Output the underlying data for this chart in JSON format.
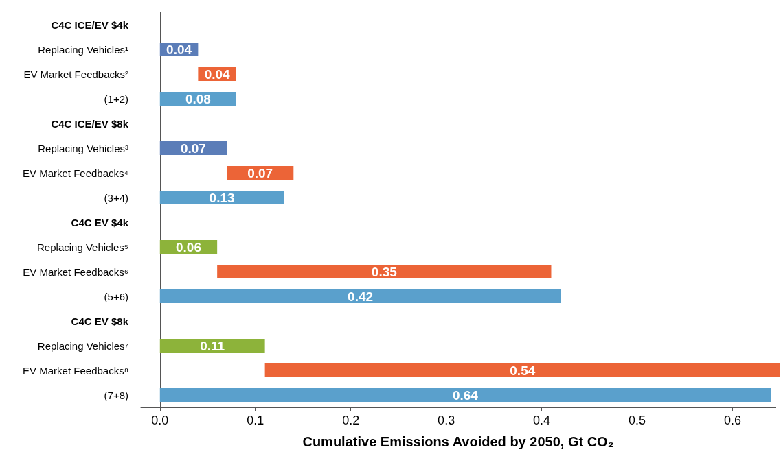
{
  "chart_data": {
    "type": "bar",
    "orientation": "horizontal",
    "xlabel": "Cumulative Emissions Avoided by 2050, Gt CO₂",
    "categories": [
      "C4C ICE/EV $4k",
      "Replacing Vehicles¹",
      "EV Market Feedbacks²",
      "(1+2)",
      "C4C ICE/EV $8k",
      "Replacing Vehicles³",
      "EV Market Feedbacks⁴",
      "(3+4)",
      "C4C EV $4k",
      "Replacing Vehicles⁵",
      "EV Market Feedbacks⁶",
      "(5+6)",
      "C4C EV $8k",
      "Replacing Vehicles⁷",
      "EV Market Feedbacks⁸",
      "(7+8)"
    ],
    "values": [
      null,
      0.04,
      0.04,
      0.08,
      null,
      0.07,
      0.07,
      0.13,
      null,
      0.06,
      0.35,
      0.42,
      null,
      0.11,
      0.54,
      0.64
    ],
    "base": [
      null,
      0,
      0.04,
      0,
      null,
      0,
      0.07,
      0,
      null,
      0,
      0.06,
      0,
      null,
      0,
      0.11,
      0
    ],
    "colors": [
      null,
      "#5b7db8",
      "#ec6437",
      "#5aa0cc",
      null,
      "#5b7db8",
      "#ec6437",
      "#5aa0cc",
      null,
      "#8db33a",
      "#ec6437",
      "#5aa0cc",
      null,
      "#8db33a",
      "#ec6437",
      "#5aa0cc"
    ],
    "data_labels": true,
    "xlim": [
      -0.02,
      0.645
    ],
    "xticks": [
      {
        "value": 0,
        "label": "0.0"
      },
      0.1,
      0.2,
      0.3,
      0.4,
      0.5,
      0.6
    ]
  }
}
